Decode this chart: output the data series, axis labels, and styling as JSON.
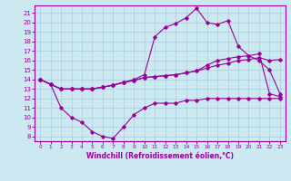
{
  "xlabel": "Windchill (Refroidissement éolien,°C)",
  "background_color": "#cce8f0",
  "grid_color": "#aaccdd",
  "line_color": "#990099",
  "x_hours": [
    0,
    1,
    2,
    3,
    4,
    5,
    6,
    7,
    8,
    9,
    10,
    11,
    12,
    13,
    14,
    15,
    16,
    17,
    18,
    19,
    20,
    21,
    22,
    23
  ],
  "line1": [
    14,
    13.5,
    13,
    13,
    13,
    13,
    13.2,
    13.4,
    13.7,
    13.9,
    14.2,
    14.3,
    14.4,
    14.5,
    14.7,
    14.9,
    15.2,
    15.5,
    15.7,
    16.0,
    16.1,
    16.3,
    16.0,
    16.1
  ],
  "line2": [
    14,
    13.5,
    13,
    13,
    13,
    13,
    13.2,
    13.4,
    13.7,
    13.9,
    14.2,
    14.3,
    14.4,
    14.5,
    14.7,
    14.9,
    15.5,
    16.0,
    16.2,
    16.4,
    16.5,
    16.7,
    12.5,
    12.2
  ],
  "line3": [
    14,
    13.5,
    13,
    13,
    13,
    13,
    13.2,
    13.4,
    13.7,
    14.0,
    14.5,
    18.5,
    19.5,
    19.9,
    20.5,
    21.5,
    20.0,
    19.8,
    20.2,
    17.5,
    16.5,
    16.0,
    15.0,
    12.5
  ],
  "line4": [
    14,
    13.5,
    11.0,
    10.0,
    9.5,
    8.5,
    8.0,
    7.8,
    9.0,
    10.3,
    11.0,
    11.5,
    11.5,
    11.5,
    11.8,
    11.8,
    12.0,
    12.0,
    12.0,
    12.0,
    12.0,
    12.0,
    12.0,
    12.0
  ],
  "ylim_min": 7.5,
  "ylim_max": 21.8,
  "yticks": [
    8,
    9,
    10,
    11,
    12,
    13,
    14,
    15,
    16,
    17,
    18,
    19,
    20,
    21
  ],
  "xticks": [
    0,
    1,
    2,
    3,
    4,
    5,
    6,
    7,
    8,
    9,
    10,
    11,
    12,
    13,
    14,
    15,
    16,
    17,
    18,
    19,
    20,
    21,
    22,
    23
  ]
}
